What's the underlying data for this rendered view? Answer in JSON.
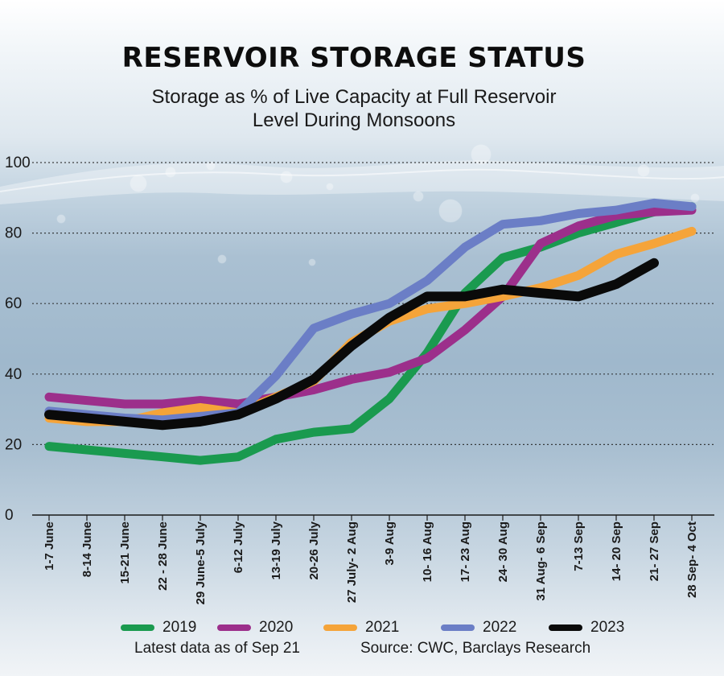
{
  "chart_data": {
    "type": "line",
    "title": "RESERVOIR STORAGE STATUS",
    "subtitle_line1": "Storage as % of Live Capacity at Full Reservoir",
    "subtitle_line2": "Level During Monsoons",
    "ylabel": "",
    "xlabel": "",
    "ylim": [
      0,
      100
    ],
    "yticks": [
      "0",
      "20",
      "40",
      "60",
      "80",
      "100"
    ],
    "grid": true,
    "categories": [
      "1-7 June",
      "8-14 June",
      "15-21 June",
      "22 - 28 June",
      "29 June-5 July",
      "6-12 July",
      "13-19 July",
      "20-26 July",
      "27 July- 2 Aug",
      "3-9 Aug",
      "10- 16 Aug",
      "17- 23 Aug",
      "24- 30 Aug",
      "31 Aug- 6 Sep",
      "7-13 Sep",
      "14- 20 Sep",
      "21- 27 Sep",
      "28 Sep- 4 Oct"
    ],
    "series": [
      {
        "name": "2019",
        "color": "#1a9a4f",
        "values": [
          19.5,
          18.5,
          17.5,
          16.5,
          15.5,
          16.5,
          21.5,
          23.5,
          24.5,
          33,
          46,
          63,
          73,
          76,
          80,
          83,
          86,
          87.5
        ]
      },
      {
        "name": "2020",
        "color": "#9c2f8b",
        "values": [
          33.5,
          32.5,
          31.5,
          31.5,
          32.5,
          31.5,
          33.5,
          35.5,
          38.5,
          40.5,
          44.5,
          52.5,
          62,
          77,
          82,
          85,
          86,
          86.5
        ]
      },
      {
        "name": "2021",
        "color": "#f5a43a",
        "values": [
          27.5,
          26.5,
          26.5,
          29,
          30.5,
          29,
          33.5,
          38,
          49,
          55,
          58.5,
          60,
          62,
          64.5,
          68,
          74,
          77,
          80.5
        ]
      },
      {
        "name": "2022",
        "color": "#6b7ec6",
        "values": [
          29.5,
          28.5,
          27.5,
          27,
          28,
          29,
          39.5,
          53,
          57,
          60,
          66.5,
          76,
          82.5,
          83.5,
          85.5,
          86.5,
          88.5,
          87.5
        ]
      },
      {
        "name": "2023",
        "color": "#0a0a0a",
        "values": [
          28.5,
          27.5,
          26.5,
          25.5,
          26.5,
          28.5,
          33,
          38.5,
          48,
          56,
          62,
          62,
          64,
          63,
          62,
          65.5,
          71.5,
          null
        ]
      }
    ]
  },
  "footer": {
    "latest": "Latest data as of Sep 21",
    "source": "Source: CWC, Barclays Research"
  }
}
